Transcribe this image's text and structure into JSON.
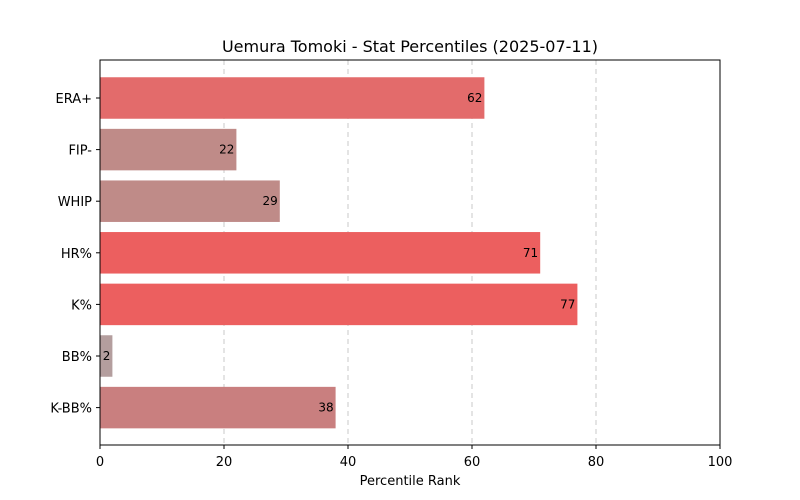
{
  "chart_data": {
    "type": "bar",
    "orientation": "horizontal",
    "title": "Uemura Tomoki - Stat Percentiles (2025-07-11)",
    "xlabel": "Percentile Rank",
    "ylabel": "",
    "xlim": [
      0,
      100
    ],
    "xticks": [
      0,
      20,
      40,
      60,
      80,
      100
    ],
    "grid": "x-dashed",
    "categories": [
      "ERA+",
      "FIP-",
      "WHIP",
      "HR%",
      "K%",
      "BB%",
      "K-BB%"
    ],
    "values": [
      62,
      22,
      29,
      71,
      77,
      2,
      38
    ],
    "colors": [
      "#e36b6b",
      "#bf8b88",
      "#bf8b88",
      "#ec5f5f",
      "#ec5f5f",
      "#b49e9e",
      "#c97f7f"
    ],
    "data_labels": [
      "62",
      "22",
      "29",
      "71",
      "77",
      "2",
      "38"
    ]
  }
}
